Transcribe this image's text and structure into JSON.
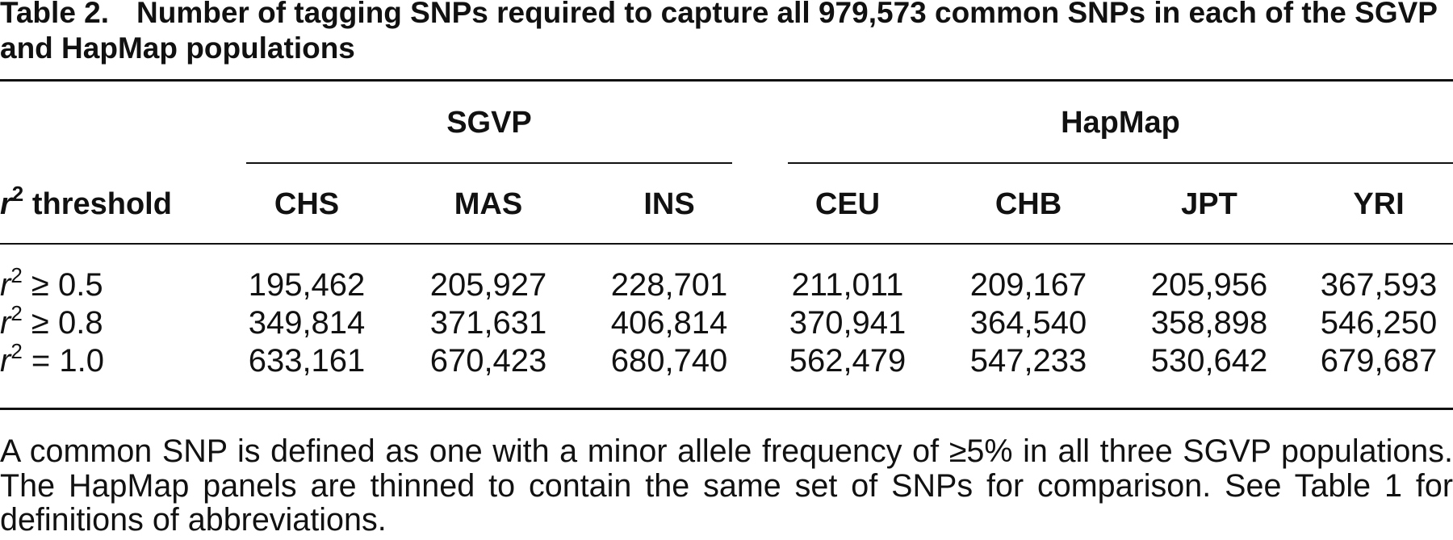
{
  "title": {
    "label": "Table 2.",
    "text": "Number of tagging SNPs required to capture all 979,573 common SNPs in each of the SGVP and HapMap populations"
  },
  "groups": [
    {
      "label": "SGVP"
    },
    {
      "label": "HapMap"
    }
  ],
  "header": {
    "row_label_var": "r",
    "row_label_sup": "2",
    "row_label_text": " threshold",
    "columns": [
      "CHS",
      "MAS",
      "INS",
      "CEU",
      "CHB",
      "JPT",
      "YRI"
    ]
  },
  "rows": [
    {
      "var": "r",
      "sup": "2",
      "cond": " ≥ 0.5",
      "values": [
        "195,462",
        "205,927",
        "228,701",
        "211,011",
        "209,167",
        "205,956",
        "367,593"
      ]
    },
    {
      "var": "r",
      "sup": "2",
      "cond": " ≥ 0.8",
      "values": [
        "349,814",
        "371,631",
        "406,814",
        "370,941",
        "364,540",
        "358,898",
        "546,250"
      ]
    },
    {
      "var": "r",
      "sup": "2",
      "cond": " = 1.0",
      "values": [
        "633,161",
        "670,423",
        "680,740",
        "562,479",
        "547,233",
        "530,642",
        "679,687"
      ]
    }
  ],
  "footnote": "A common SNP is defined as one with a minor allele frequency of ≥5% in all three SGVP pop­ulations. The HapMap panels are thinned to contain the same set of SNPs for comparison. See Table 1 for definitions of abbreviations."
}
